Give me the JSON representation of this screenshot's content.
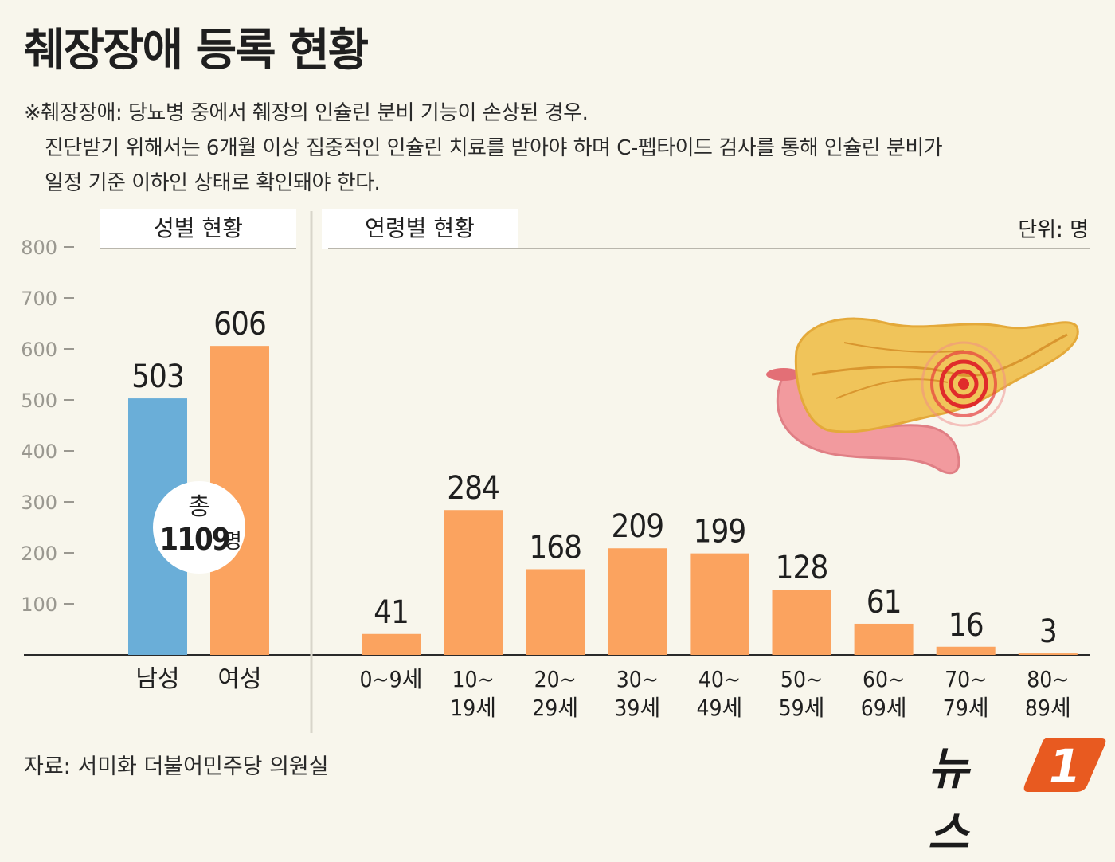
{
  "title": "췌장장애 등록 현황",
  "note": [
    "※췌장장애: 당뇨병 중에서 췌장의 인슐린 분비 기능이 손상된 경우.",
    "진단받기 위해서는 6개월 이상 집중적인 인슐린 치료를 받아야 하며 C-펩타이드 검사를 통해 인슐린 분비가",
    "일정 기준 이하인 상태로 확인돼야 한다."
  ],
  "unit": "단위: 명",
  "source": "자료: 서미화 더불어민주당 의원실",
  "logo": {
    "text": "뉴스",
    "mark": "1"
  },
  "colors": {
    "male": "#6aaed8",
    "female": "#fba35f",
    "age": "#fba35f",
    "badge": "#e85a20"
  },
  "total_badge": {
    "line1": "총",
    "number": "1109",
    "suffix": "명"
  },
  "chart_data": [
    {
      "type": "bar",
      "title": "성별 현황",
      "categories": [
        "남성",
        "여성"
      ],
      "values": [
        503,
        606
      ],
      "ylim": [
        0,
        800
      ],
      "yticks": [
        100,
        200,
        300,
        400,
        500,
        600,
        700,
        800
      ]
    },
    {
      "type": "bar",
      "title": "연령별 현황",
      "categories": [
        [
          "0~9세"
        ],
        [
          "10~",
          "19세"
        ],
        [
          "20~",
          "29세"
        ],
        [
          "30~",
          "39세"
        ],
        [
          "40~",
          "49세"
        ],
        [
          "50~",
          "59세"
        ],
        [
          "60~",
          "69세"
        ],
        [
          "70~",
          "79세"
        ],
        [
          "80~",
          "89세"
        ]
      ],
      "values": [
        41,
        284,
        168,
        209,
        199,
        128,
        61,
        16,
        3
      ],
      "ylim": [
        0,
        800
      ]
    }
  ]
}
